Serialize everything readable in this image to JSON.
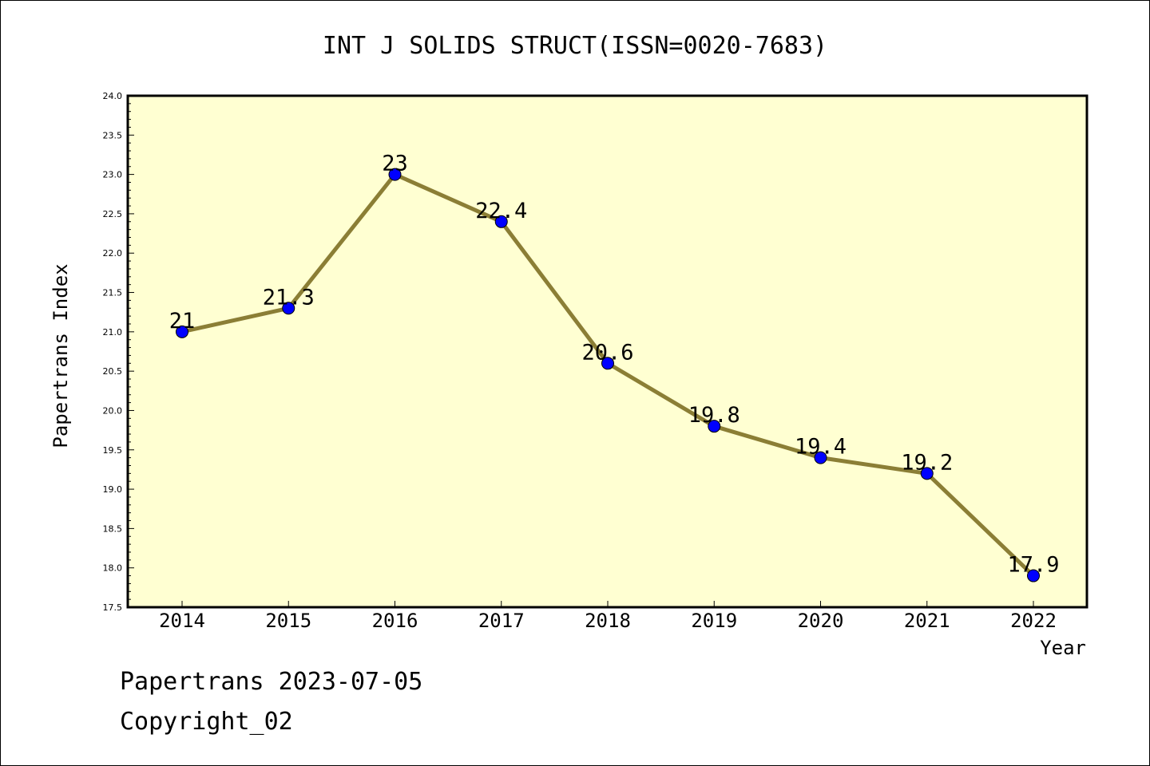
{
  "chart_data": {
    "type": "line",
    "title": "INT J SOLIDS STRUCT(ISSN=0020-7683)",
    "xlabel": "Year",
    "ylabel": "Papertrans Index",
    "categories": [
      "2014",
      "2015",
      "2016",
      "2017",
      "2018",
      "2019",
      "2020",
      "2021",
      "2022"
    ],
    "series": [
      {
        "values": [
          21,
          21.3,
          23,
          22.4,
          20.6,
          19.8,
          19.4,
          19.2,
          17.9
        ],
        "labels": [
          "21",
          "21.3",
          "23",
          "22.4",
          "20.6",
          "19.8",
          "19.4",
          "19.2",
          "17.9"
        ]
      }
    ],
    "ylim": [
      17.5,
      24.0
    ],
    "yticks": [
      "17.5",
      "18.0",
      "18.5",
      "19.0",
      "19.5",
      "20.0",
      "20.5",
      "21.0",
      "21.5",
      "22.0",
      "22.5",
      "23.0",
      "23.5",
      "24.0"
    ],
    "grid": false,
    "colors": {
      "plot_background": "#ffffd2",
      "line": "#8b7e35",
      "marker": "#0000ff"
    }
  },
  "footer": {
    "line1": "Papertrans 2023-07-05",
    "line2": "Copyright_02"
  }
}
